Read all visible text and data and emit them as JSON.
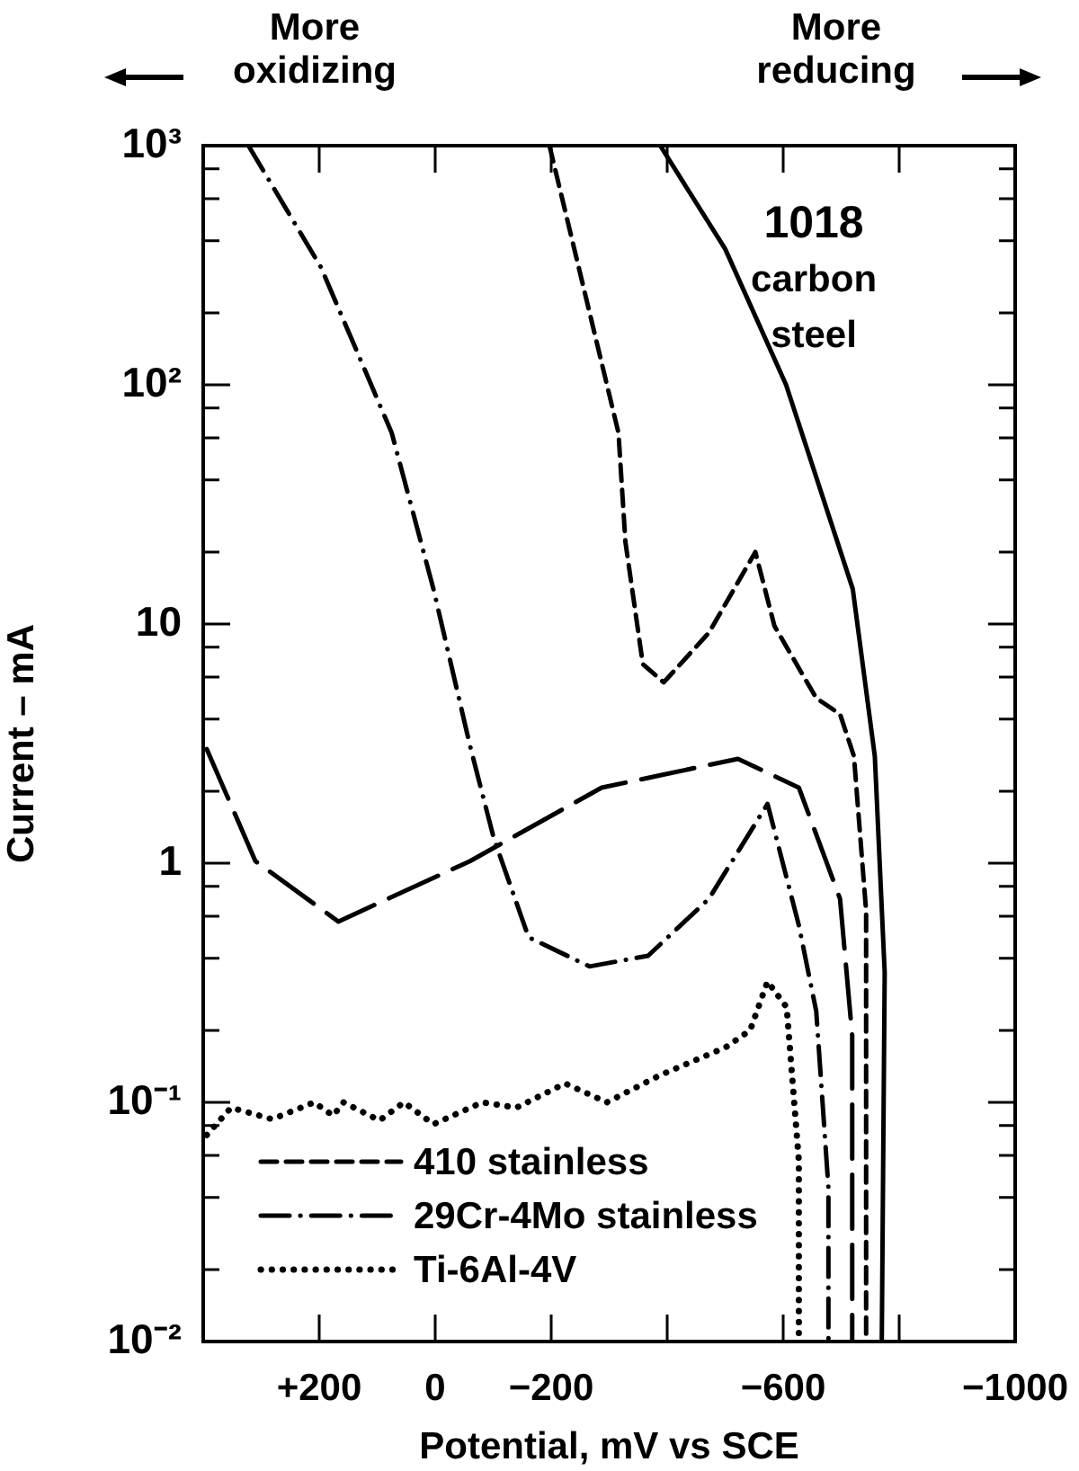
{
  "chart_data": {
    "type": "line",
    "xlabel": "Potential, mV vs SCE",
    "ylabel": "Current – mA",
    "annotations": [
      "More oxidizing",
      "More reducing",
      "1018 carbon steel"
    ],
    "xlim": [
      400,
      -1000
    ],
    "xticks": [
      {
        "value": 200,
        "label": "+200"
      },
      0,
      {
        "value": -200,
        "label": "−200"
      },
      {
        "value": -400,
        "label": null
      },
      {
        "value": -600,
        "label": "−600"
      },
      {
        "value": -800,
        "label": null
      },
      {
        "value": -1000,
        "label": "−1000"
      }
    ],
    "ylim": [
      0.01,
      1000
    ],
    "yticks": [
      {
        "value": 0.01,
        "label": "10⁻²"
      },
      {
        "value": 0.02,
        "label": null
      },
      {
        "value": 0.04,
        "label": null
      },
      {
        "value": 0.06,
        "label": null
      },
      {
        "value": 0.08,
        "label": null
      },
      {
        "value": 0.1,
        "label": "10⁻¹"
      },
      {
        "value": 0.2,
        "label": null
      },
      {
        "value": 0.4,
        "label": null
      },
      {
        "value": 0.6,
        "label": null
      },
      {
        "value": 0.8,
        "label": null
      },
      1,
      {
        "value": 2,
        "label": null
      },
      {
        "value": 4,
        "label": null
      },
      {
        "value": 6,
        "label": null
      },
      {
        "value": 8,
        "label": null
      },
      10,
      {
        "value": 20,
        "label": null
      },
      {
        "value": 40,
        "label": null
      },
      {
        "value": 60,
        "label": null
      },
      {
        "value": 80,
        "label": null
      },
      {
        "value": 100,
        "label": "10²"
      },
      {
        "value": 200,
        "label": null
      },
      {
        "value": 400,
        "label": null
      },
      {
        "value": 600,
        "label": null
      },
      {
        "value": 800,
        "label": null
      },
      {
        "value": 1000,
        "label": "10³"
      }
    ],
    "log": "y",
    "grid": false,
    "legend": "bottom left",
    "marker": "none",
    "series": [
      {
        "color": "#000000",
        "line_style": "solid",
        "x": [
          -388,
          -500,
          -605,
          -720,
          -758,
          -775,
          -770
        ],
        "values": [
          1000,
          370,
          100,
          14,
          2.8,
          0.35,
          0.01
        ]
      },
      {
        "name": "410 stainless",
        "color": "#000000",
        "line_style": "dashed",
        "x": [
          -197,
          -316,
          -328,
          -358,
          -394,
          -472,
          -552,
          -585,
          -657,
          -698,
          -722,
          -743,
          -743
        ],
        "values": [
          1000,
          63,
          22,
          6.8,
          5.7,
          9.2,
          20,
          9.8,
          4.9,
          4.2,
          2.8,
          0.63,
          0.01
        ]
      },
      {
        "name": "29Cr-4Mo stainless",
        "color": "#000000",
        "line_style": "dashdot",
        "x": [
          322,
          197,
          75,
          3,
          -60,
          -101,
          -161,
          -266,
          -367,
          -472,
          -573,
          -627,
          -657,
          -678,
          -678
        ],
        "values": [
          1000,
          310,
          63,
          14,
          3.1,
          1.27,
          0.49,
          0.37,
          0.41,
          0.71,
          1.77,
          0.55,
          0.24,
          0.044,
          0.01
        ]
      },
      {
        "color": "#000000",
        "line_style": "longdash",
        "x": [
          394,
          310,
          167,
          -60,
          -287,
          -388,
          -522,
          -627,
          -698,
          -719,
          -719
        ],
        "values": [
          3,
          1.02,
          0.57,
          1.02,
          2.07,
          2.33,
          2.73,
          2.07,
          0.71,
          0.19,
          0.01
        ]
      },
      {
        "name": "Ti-6Al-4V",
        "color": "#000000",
        "line_style": "dotted",
        "x": [
          394,
          352,
          281,
          209,
          176,
          158,
          96,
          54,
          3,
          -81,
          -140,
          -224,
          -296,
          -388,
          -501,
          -543,
          -573,
          -606,
          -627,
          -627
        ],
        "values": [
          0.073,
          0.095,
          0.085,
          0.1,
          0.088,
          0.1,
          0.084,
          0.1,
          0.081,
          0.1,
          0.095,
          0.12,
          0.1,
          0.13,
          0.17,
          0.2,
          0.32,
          0.25,
          0.057,
          0.01
        ]
      }
    ]
  }
}
